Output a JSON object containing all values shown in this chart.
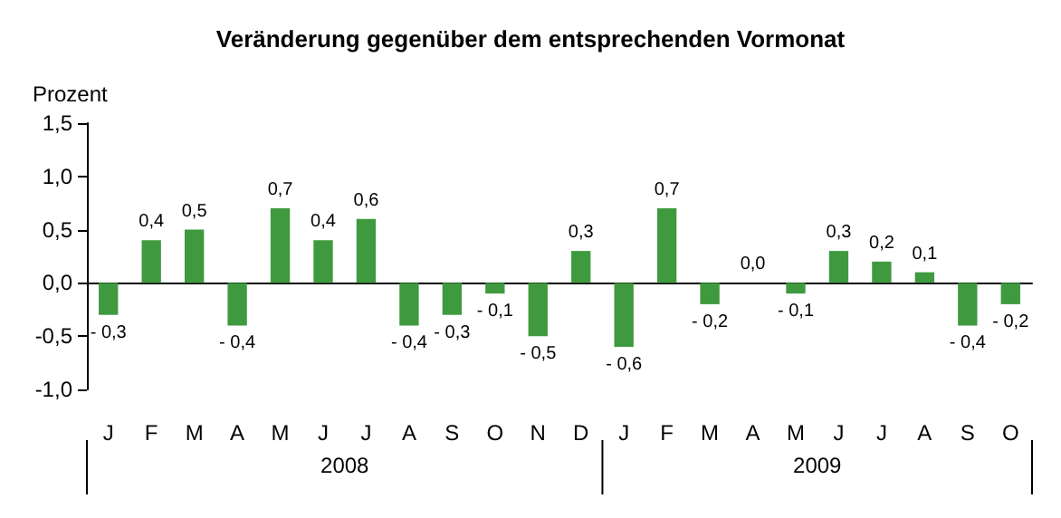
{
  "chart_data": {
    "type": "bar",
    "title": "Veränderung gegenüber dem entsprechenden Vormonat",
    "ylabel": "Prozent",
    "categories": [
      "J",
      "F",
      "M",
      "A",
      "M",
      "J",
      "J",
      "A",
      "S",
      "O",
      "N",
      "D",
      "J",
      "F",
      "M",
      "A",
      "M",
      "J",
      "J",
      "A",
      "S",
      "O"
    ],
    "values": [
      -0.3,
      0.4,
      0.5,
      -0.4,
      0.7,
      0.4,
      0.6,
      -0.4,
      -0.3,
      -0.1,
      -0.5,
      0.3,
      -0.6,
      0.7,
      -0.2,
      0.0,
      -0.1,
      0.3,
      0.2,
      0.1,
      -0.4,
      -0.2
    ],
    "value_labels": [
      "- 0,3",
      "0,4",
      "0,5",
      "- 0,4",
      "0,7",
      "0,4",
      "0,6",
      "- 0,4",
      "- 0,3",
      "- 0,1",
      "- 0,5",
      "0,3",
      "- 0,6",
      "0,7",
      "- 0,2",
      "0,0",
      "- 0,1",
      "0,3",
      "0,2",
      "0,1",
      "- 0,4",
      "- 0,2"
    ],
    "color": "#3f9a3f",
    "ylim": [
      -1.0,
      1.5
    ],
    "yticks": [
      {
        "value": -1.0,
        "label": "-1,0"
      },
      {
        "value": -0.5,
        "label": "-0,5"
      },
      {
        "value": 0.0,
        "label": "0,0"
      },
      {
        "value": 0.5,
        "label": "0,5"
      },
      {
        "value": 1.0,
        "label": "1,0"
      },
      {
        "value": 1.5,
        "label": "1,5"
      }
    ],
    "annotations": [
      "2008",
      "2009"
    ]
  }
}
